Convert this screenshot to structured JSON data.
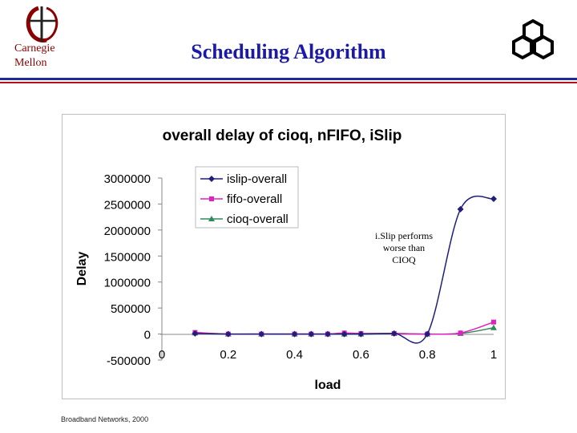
{
  "header": {
    "org_line1": "Carnegie",
    "org_line2": "Mellon",
    "title": "Scheduling Algorithm"
  },
  "footer": {
    "text": "Broadband Networks, 2000"
  },
  "annotation": {
    "line1": "i.Slip performs",
    "line2": "worse than",
    "line3": "CIOQ"
  },
  "colors": {
    "title_blue": "#1a1aa6",
    "rule_blue": "#1f2a9a",
    "rule_red": "#b01020",
    "cmu_red": "#8b0000"
  },
  "chart_data": {
    "type": "line",
    "title": "overall delay of cioq, nFIFO, iSlip",
    "xlabel": "load",
    "ylabel": "Delay",
    "xlim": [
      0,
      1
    ],
    "ylim": [
      -500000,
      3000000
    ],
    "x_ticks": [
      "0",
      "0.2",
      "0.4",
      "0.6",
      "0.8",
      "1"
    ],
    "y_ticks": [
      "3000000",
      "2500000",
      "2000000",
      "1500000",
      "1000000",
      "500000",
      "0",
      "-500000"
    ],
    "legend_position": "top-left",
    "series": [
      {
        "name": "islip-overall",
        "color": "#1f1f7a",
        "marker": "diamond",
        "x": [
          0.1,
          0.2,
          0.3,
          0.4,
          0.45,
          0.5,
          0.55,
          0.6,
          0.7,
          0.8,
          0.9,
          1.0
        ],
        "values": [
          10000,
          0,
          0,
          0,
          0,
          0,
          0,
          0,
          10000,
          0,
          2400000,
          2600000
        ]
      },
      {
        "name": "fifo-overall",
        "color": "#e020c0",
        "marker": "square",
        "x": [
          0.1,
          0.2,
          0.3,
          0.4,
          0.45,
          0.5,
          0.55,
          0.6,
          0.7,
          0.8,
          0.9,
          1.0
        ],
        "values": [
          30000,
          0,
          0,
          0,
          0,
          0,
          20000,
          10000,
          10000,
          0,
          20000,
          230000
        ]
      },
      {
        "name": "cioq-overall",
        "color": "#2e8b57",
        "marker": "triangle",
        "x": [
          0.1,
          0.2,
          0.3,
          0.4,
          0.45,
          0.5,
          0.55,
          0.6,
          0.7,
          0.8,
          0.9,
          1.0
        ],
        "values": [
          20000,
          0,
          0,
          0,
          0,
          0,
          0,
          0,
          10000,
          0,
          10000,
          120000
        ]
      }
    ]
  }
}
